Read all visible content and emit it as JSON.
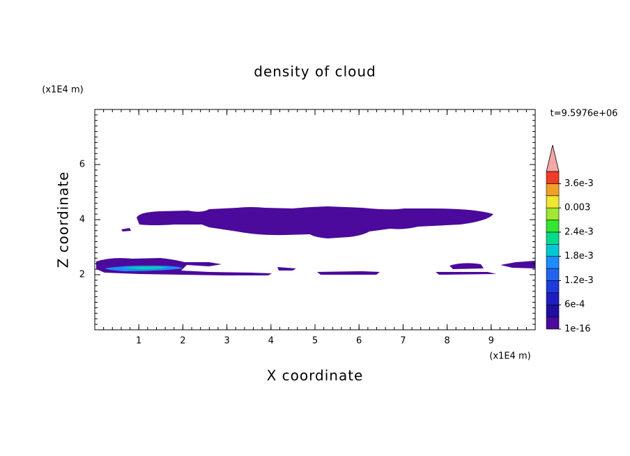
{
  "chart_data": {
    "type": "contour",
    "title": "density of cloud",
    "xlabel": "X coordinate",
    "ylabel": "Z coordinate",
    "xunit": "(x1E4 m)",
    "yunit": "(x1E4 m)",
    "time_label": "t=9.5976e+06",
    "xlim": [
      0,
      10
    ],
    "ylim": [
      0,
      8
    ],
    "xticks": [
      1,
      2,
      3,
      4,
      5,
      6,
      7,
      8,
      9
    ],
    "yticks": [
      2,
      4,
      6
    ],
    "colorbar": {
      "clim": [
        1e-16,
        0.0039
      ],
      "colors": [
        "#4b0a9b",
        "#1e0fa0",
        "#1e1ec0",
        "#1e3cdc",
        "#2064f0",
        "#1e8cff",
        "#00c8d2",
        "#00dc8c",
        "#32e632",
        "#a0e632",
        "#f0e632",
        "#f0a028",
        "#f03c28"
      ],
      "extend_color": "#f5a5a5",
      "ticks": [
        {
          "value": 1e-16,
          "label": "1e-16"
        },
        {
          "value": 0.0006,
          "label": "6e-4"
        },
        {
          "value": 0.0012,
          "label": "1.2e-3"
        },
        {
          "value": 0.0018,
          "label": "1.8e-3"
        },
        {
          "value": 0.0024,
          "label": "2.4e-3"
        },
        {
          "value": 0.003,
          "label": "0.003"
        },
        {
          "value": 0.0036,
          "label": "3.6e-3"
        }
      ]
    }
  }
}
